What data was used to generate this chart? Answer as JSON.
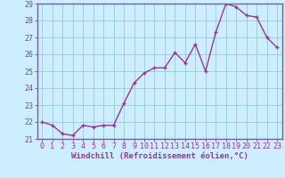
{
  "x": [
    0,
    1,
    2,
    3,
    4,
    5,
    6,
    7,
    8,
    9,
    10,
    11,
    12,
    13,
    14,
    15,
    16,
    17,
    18,
    19,
    20,
    21,
    22,
    23
  ],
  "y": [
    22.0,
    21.8,
    21.3,
    21.2,
    21.8,
    21.7,
    21.8,
    21.8,
    23.1,
    24.3,
    24.9,
    25.2,
    25.2,
    26.1,
    25.5,
    26.6,
    25.0,
    27.3,
    29.0,
    28.8,
    28.3,
    28.2,
    27.0,
    26.4
  ],
  "line_color": "#993399",
  "marker": "+",
  "marker_size": 3,
  "bg_color": "#cceeff",
  "grid_color": "#99cccc",
  "border_color": "#666699",
  "xlabel": "Windchill (Refroidissement éolien,°C)",
  "ylim": [
    21,
    29
  ],
  "yticks": [
    21,
    22,
    23,
    24,
    25,
    26,
    27,
    28,
    29
  ],
  "xticks": [
    0,
    1,
    2,
    3,
    4,
    5,
    6,
    7,
    8,
    9,
    10,
    11,
    12,
    13,
    14,
    15,
    16,
    17,
    18,
    19,
    20,
    21,
    22,
    23
  ],
  "xlabel_fontsize": 6.5,
  "tick_fontsize": 6,
  "line_width": 1.0,
  "marker_edge_width": 1.0
}
